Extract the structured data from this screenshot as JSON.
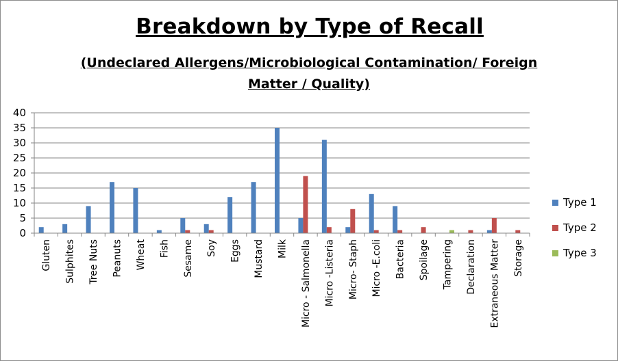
{
  "chart_data": {
    "type": "bar",
    "title": "Breakdown by Type of Recall",
    "subtitle": " (Undeclared Allergens/Microbiological Contamination/ Foreign Matter / Quality)",
    "xlabel": "",
    "ylabel": "",
    "ylim": [
      0,
      40
    ],
    "yticks": [
      "0",
      "5",
      "10",
      "15",
      "20",
      "25",
      "30",
      "35",
      "40"
    ],
    "grid": true,
    "legend": "right",
    "categories": [
      "Gluten",
      "Sulphites",
      "Tree Nuts",
      "Peanuts",
      "Wheat",
      "Fish",
      "Sesame",
      "Soy",
      "Eggs",
      "Mustard",
      "Milk",
      "Micro - Salmonella",
      "Micro -Listeria",
      "Micro- Staph",
      "Micro -E.coli",
      "Bacteria",
      "Spoilage",
      "Tampering",
      "Declaration",
      "Extraneous Matter",
      "Storage"
    ],
    "series": [
      {
        "name": "Type 1",
        "color": "#4f81bd",
        "values": [
          2,
          3,
          9,
          17,
          15,
          1,
          5,
          3,
          12,
          17,
          35,
          5,
          31,
          2,
          13,
          9,
          0,
          0,
          0,
          1,
          0
        ]
      },
      {
        "name": "Type 2",
        "color": "#c0504d",
        "values": [
          0,
          0,
          0,
          0,
          0,
          0,
          1,
          1,
          0,
          0,
          0,
          19,
          2,
          8,
          1,
          1,
          2,
          0,
          1,
          5,
          1
        ]
      },
      {
        "name": "Type 3",
        "color": "#9bbb59",
        "values": [
          0,
          0,
          0,
          0,
          0,
          0,
          0,
          0,
          0,
          0,
          0,
          0,
          0,
          0,
          0,
          0,
          0,
          1,
          0,
          0,
          0
        ]
      }
    ]
  }
}
